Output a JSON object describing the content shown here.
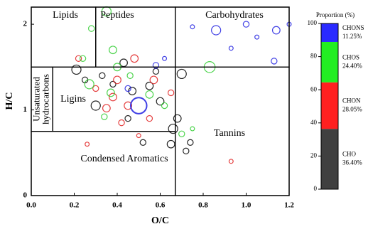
{
  "chart_data": [
    {
      "type": "scatter",
      "xlabel": "O/C",
      "ylabel": "H/C",
      "xlim": [
        0,
        1.2
      ],
      "ylim": [
        0,
        2.2
      ],
      "xticks": [
        {
          "value": 0,
          "label": "0.0"
        },
        0.2,
        0.4,
        0.6,
        0.8,
        {
          "value": 1,
          "label": "1.0"
        },
        1.2
      ],
      "yticks": [
        0,
        1,
        2
      ],
      "regions": [
        {
          "label": "Lipids",
          "xlim": [
            0,
            0.3
          ],
          "ylim": [
            1.5,
            2.2
          ]
        },
        {
          "label": "Peptides",
          "xlim": [
            0.3,
            0.67
          ],
          "ylim": [
            1.5,
            2.2
          ]
        },
        {
          "label": "Carbohydrates",
          "xlim": [
            0.67,
            1.2
          ],
          "ylim": [
            1.5,
            2.2
          ]
        },
        {
          "label": [
            "Unsaturated",
            "hydrocarbons"
          ],
          "xlim": [
            0,
            0.1
          ],
          "ylim": [
            0.75,
            1.5
          ]
        },
        {
          "label": "Ligins",
          "xlim": [
            0.1,
            0.67
          ],
          "ylim": [
            0.75,
            1.5
          ]
        },
        {
          "label": "Tannins",
          "xlim": [
            0.67,
            1.2
          ],
          "ylim": [
            0,
            1.5
          ]
        },
        {
          "label": "Condensed Aromatics",
          "xlim": [
            0,
            0.67
          ],
          "ylim": [
            0,
            0.75
          ]
        }
      ],
      "series": [
        {
          "color": "#000000",
          "x": [
            0.21,
            0.3,
            0.66,
            0.7,
            0.65,
            0.72,
            0.47,
            0.55,
            0.43,
            0.6,
            0.38,
            0.68,
            0.52,
            0.45,
            0.25,
            0.74,
            0.58,
            0.33
          ],
          "y": [
            1.47,
            1.05,
            0.78,
            1.42,
            0.6,
            0.52,
            1.22,
            1.28,
            1.55,
            1.1,
            1.3,
            0.9,
            0.62,
            0.9,
            1.35,
            0.62,
            1.45,
            1.4
          ],
          "sizes": [
            5,
            5,
            5,
            5,
            4,
            3,
            4,
            4,
            4,
            4,
            3,
            4,
            3,
            3,
            3,
            3,
            3,
            3
          ]
        },
        {
          "color": "#e02020",
          "x": [
            0.35,
            0.4,
            0.48,
            0.38,
            0.57,
            0.65,
            0.3,
            0.42,
            0.93,
            0.26,
            0.5,
            0.22,
            0.45,
            0.55
          ],
          "y": [
            1.02,
            1.35,
            1.6,
            1.15,
            1.35,
            1.2,
            1.25,
            0.85,
            0.4,
            0.6,
            0.7,
            1.6,
            1.05,
            0.9
          ],
          "sizes": [
            4,
            4,
            4,
            4,
            4,
            3,
            3,
            3,
            2,
            2,
            2,
            3,
            4,
            3
          ]
        },
        {
          "color": "#2ecc2e",
          "x": [
            0.35,
            0.28,
            0.38,
            0.83,
            0.27,
            0.37,
            0.4,
            0.55,
            0.62,
            0.34,
            0.7,
            0.46,
            0.24,
            0.75
          ],
          "y": [
            2.15,
            1.95,
            1.7,
            1.5,
            1.3,
            1.2,
            1.5,
            1.18,
            1.05,
            0.92,
            0.72,
            1.4,
            1.6,
            0.78
          ],
          "sizes": [
            5,
            3,
            4,
            6,
            5,
            4,
            4,
            4,
            3,
            3,
            3,
            3,
            3,
            2
          ]
        },
        {
          "color": "#2020e0",
          "x": [
            0.5,
            0.86,
            1.14,
            1.0,
            1.13,
            1.2,
            0.58,
            0.93,
            0.75,
            0.62,
            0.45,
            1.05
          ],
          "y": [
            1.05,
            1.93,
            1.93,
            2.0,
            1.57,
            2.0,
            1.52,
            1.72,
            1.97,
            1.6,
            1.25,
            1.85
          ],
          "sizes": [
            9,
            5,
            4,
            3,
            3,
            2,
            3,
            2,
            2,
            2,
            3,
            2
          ]
        }
      ]
    },
    {
      "type": "stacked-bar",
      "title": "Proportion (%)",
      "ylim": [
        0,
        100
      ],
      "yticks": [
        0,
        20,
        40,
        60,
        80,
        100
      ],
      "series": [
        {
          "name": "CHO",
          "color": "#404040",
          "values": [
            36.4
          ],
          "value_labels": [
            "36.40%"
          ]
        },
        {
          "name": "CHON",
          "color": "#ff2020",
          "values": [
            28.05
          ],
          "value_labels": [
            "28.05%"
          ]
        },
        {
          "name": "CHOS",
          "color": "#22ee22",
          "values": [
            24.4
          ],
          "value_labels": [
            "24.40%"
          ]
        },
        {
          "name": "CHONS",
          "color": "#2a2aff",
          "values": [
            11.25
          ],
          "value_labels": [
            "11.25%"
          ]
        }
      ]
    }
  ]
}
